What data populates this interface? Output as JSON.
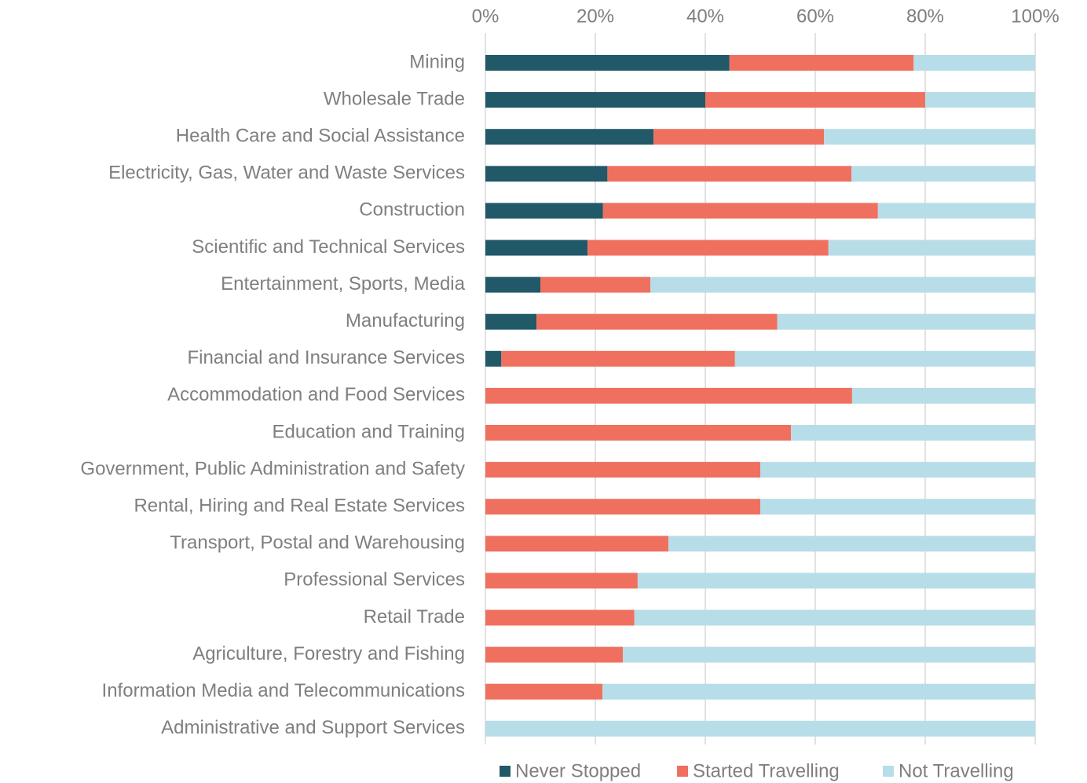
{
  "chart_data": {
    "type": "stacked-bar-horizontal",
    "categories": [
      "Mining",
      "Wholesale Trade",
      "Health Care and Social Assistance",
      "Electricity, Gas, Water and Waste Services",
      "Construction",
      "Scientific and Technical Services",
      "Entertainment, Sports, Media",
      "Manufacturing",
      "Financial and Insurance Services",
      "Accommodation and Food Services",
      "Education and Training",
      "Government, Public Administration and Safety",
      "Rental, Hiring and Real Estate Services",
      "Transport, Postal and Warehousing",
      "Professional Services",
      "Retail Trade",
      "Agriculture, Forestry and Fishing",
      "Information Media and Telecommunications",
      "Administrative and Support Services"
    ],
    "series": [
      {
        "name": "Never Stopped",
        "color": "#215968",
        "values": [
          44.4,
          40,
          30.6,
          22.2,
          21.4,
          18.6,
          10,
          9.3,
          2.9,
          0,
          0,
          0,
          0,
          0,
          0,
          0,
          0,
          0,
          0
        ]
      },
      {
        "name": "Started Travelling",
        "color": "#f07060",
        "values": [
          33.5,
          40,
          31,
          44.4,
          50,
          43.8,
          20,
          43.8,
          42.5,
          66.7,
          55.6,
          50,
          50,
          33.3,
          27.7,
          27.1,
          25,
          21.3,
          0
        ]
      },
      {
        "name": "Not Travelling",
        "color": "#b7dde8",
        "values": [
          22.1,
          20,
          38.4,
          33.4,
          28.6,
          37.6,
          70,
          46.9,
          54.6,
          33.3,
          44.4,
          50,
          50,
          66.7,
          72.3,
          72.9,
          75,
          78.7,
          100
        ]
      }
    ],
    "xlim": [
      0,
      100
    ],
    "xticks": [
      {
        "value": 0,
        "label": "0%"
      },
      {
        "value": 20,
        "label": "20%"
      },
      {
        "value": 40,
        "label": "40%"
      },
      {
        "value": 60,
        "label": "60%"
      },
      {
        "value": 80,
        "label": "80%"
      },
      {
        "value": 100,
        "label": "100%"
      }
    ],
    "grid": true,
    "legend": "bottom"
  }
}
